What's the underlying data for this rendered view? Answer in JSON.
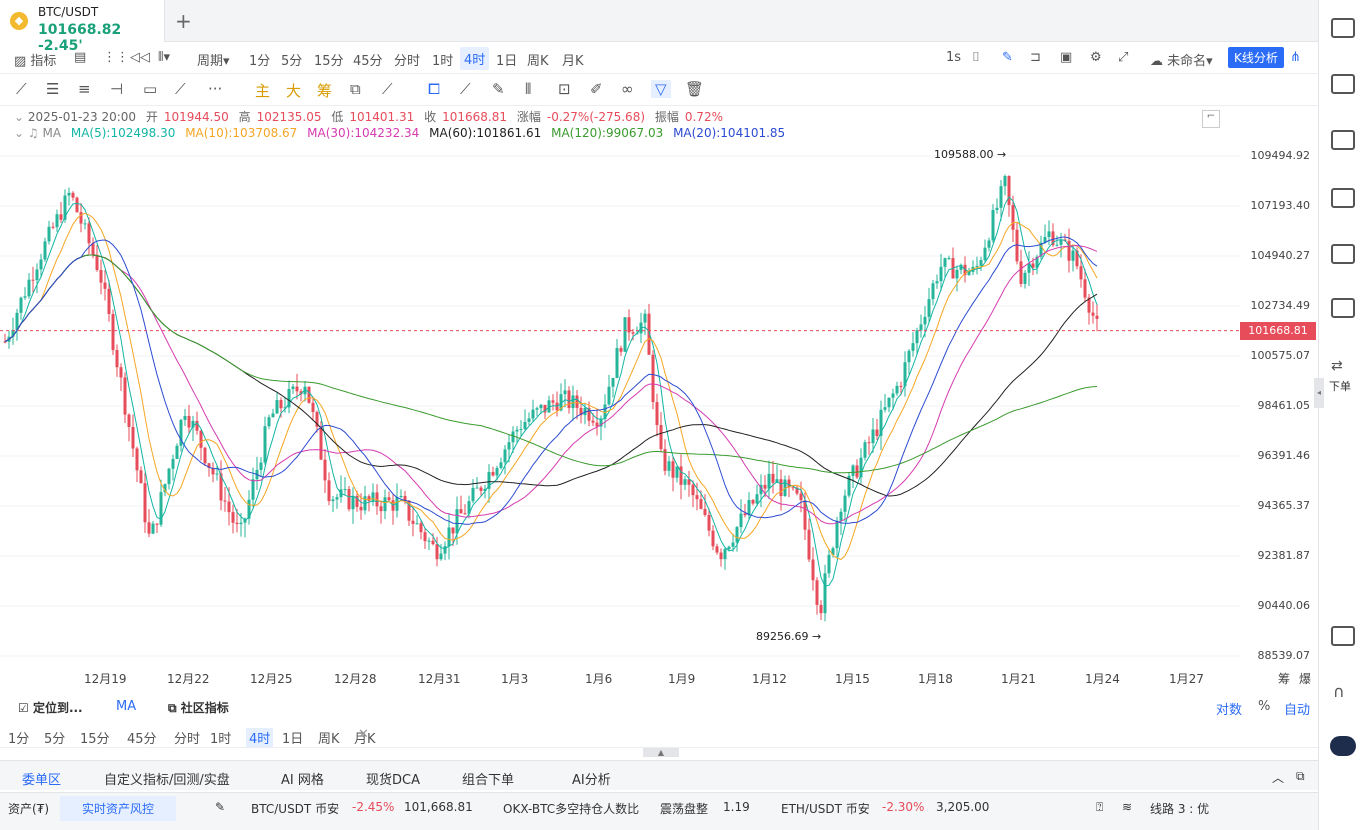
{
  "tab": {
    "symbol": "BTC/USDT",
    "price": "101668.82",
    "change": "-2.45'"
  },
  "toolbar1": [
    "指标",
    "周期",
    "1分",
    "5分",
    "15分",
    "45分",
    "分时",
    "1时",
    "4时",
    "1日",
    "周K",
    "月K"
  ],
  "toolbar1_right": {
    "interval": "1s",
    "layout": "未命名",
    "kline": "K线分析"
  },
  "toolbar2_labels": [
    "主",
    "大",
    "筹"
  ],
  "ohlc": {
    "date": "2025-01-23 20:00",
    "open_l": "开",
    "open": "101944.50",
    "high_l": "高",
    "high": "102135.05",
    "low_l": "低",
    "low": "101401.31",
    "close_l": "收",
    "close": "101668.81",
    "chg_l": "涨幅",
    "chg": "-0.27%(-275.68)",
    "amp_l": "振幅",
    "amp": "0.72%"
  },
  "ma_legend": [
    {
      "t": "MA(5):102498.30",
      "c": "#13b5a5"
    },
    {
      "t": "MA(10):103708.67",
      "c": "#f5a623"
    },
    {
      "t": "MA(30):104232.34",
      "c": "#d63bb0"
    },
    {
      "t": "MA(60):101861.61",
      "c": "#222"
    },
    {
      "t": "MA(120):99067.03",
      "c": "#3a9b2e"
    },
    {
      "t": "MA(20):104101.85",
      "c": "#2c4bd1"
    }
  ],
  "ma_prefix": "MA",
  "y_ticks": [
    "109494.92",
    "107193.40",
    "104940.27",
    "102734.49",
    "100575.07",
    "98461.05",
    "96391.46",
    "94365.37",
    "92381.87",
    "90440.06",
    "88539.07"
  ],
  "current_price": "101668.81",
  "high_mark": "109588.00 →",
  "low_mark": "89256.69 →",
  "x_ticks": [
    "12月19",
    "12月22",
    "12月25",
    "12月28",
    "12月31",
    "1月3",
    "1月6",
    "1月9",
    "1月12",
    "1月15",
    "1月18",
    "1月21",
    "1月24",
    "1月27"
  ],
  "x_extra": [
    "筹",
    "爆"
  ],
  "ind_row": {
    "locate": "定位到...",
    "ma": "MA",
    "community": "社区指标",
    "log": "对数",
    "pct": "%",
    "auto": "自动"
  },
  "ind_row2": [
    "1分",
    "5分",
    "15分",
    "45分",
    "分时",
    "1时",
    "4时",
    "1日",
    "周K",
    "月K"
  ],
  "bottom_tabs": [
    "委单区",
    "自定义指标/回测/实盘",
    "AI 网格",
    "现货DCA",
    "组合下单",
    "AI分析"
  ],
  "status": {
    "assets": "资产(₮)",
    "risk": "实时资产风控",
    "btc": "BTC/USDT 币安",
    "btc_chg": "-2.45%",
    "btc_px": "101,668.81",
    "okx": "OKX-BTC多空持仓人数比",
    "okx_state": "震荡盘整",
    "okx_val": "1.19",
    "eth": "ETH/USDT 币安",
    "eth_chg": "-2.30%",
    "eth_px": "3,205.00",
    "line": "线路 3 : 优"
  },
  "right_sidebar": {
    "order": "下单"
  },
  "chart_data": {
    "type": "candlestick",
    "interval": "4时",
    "y_range": [
      88539.07,
      110500
    ],
    "high": 109588.0,
    "low": 89256.69,
    "last": 101668.81
  }
}
